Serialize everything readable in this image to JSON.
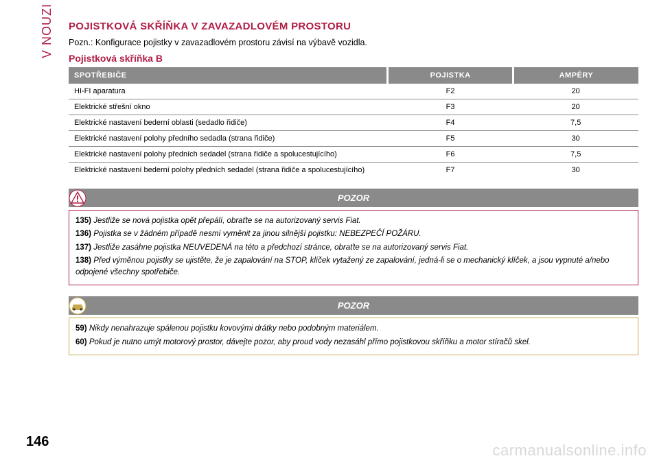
{
  "colors": {
    "accent": "#b01e45",
    "header_bg": "#8a8a8a",
    "header_gap": "#ffffff",
    "row_border": "#888888",
    "warn1_bg": "#8a8a8a",
    "warn1_border": "#b01e45",
    "warn2_bg": "#8a8a8a",
    "warn2_border": "#caa84a",
    "side_label": "#b01e45",
    "watermark": "#d8d8d8"
  },
  "side_label": "V NOUZI",
  "page_number": "146",
  "watermark": "carmanualsonline.info",
  "heading_main": "POJISTKOVÁ SKŘÍŇKA V ZAVAZADLOVÉM PROSTORU",
  "note": "Pozn.: Konfigurace pojistky v zavazadlovém prostoru závisí na výbavě vozidla.",
  "heading_sub": "Pojistková skříňka B",
  "table": {
    "columns": [
      "SPOTŘEBIČE",
      "POJISTKA",
      "AMPÉRY"
    ],
    "rows": [
      [
        "HI-FI aparatura",
        "F2",
        "20"
      ],
      [
        "Elektrické střešní okno",
        "F3",
        "20"
      ],
      [
        "Elektrické nastavení bederní oblasti (sedadlo řidiče)",
        "F4",
        "7,5"
      ],
      [
        "Elektrické nastavení polohy předního sedadla (strana řidiče)",
        "F5",
        "30"
      ],
      [
        "Elektrické nastavení polohy předních sedadel (strana řidiče a spolucestujícího)",
        "F6",
        "7,5"
      ],
      [
        "Elektrické nastavení bederní polohy předních sedadel (strana řidiče a spolucestujícího)",
        "F7",
        "30"
      ]
    ]
  },
  "callout1": {
    "title": "POZOR",
    "icon": "warning-triangle",
    "items": [
      {
        "num": "135)",
        "text": "Jestliže se nová pojistka opět přepálí, obraťte se na autorizovaný servis Fiat."
      },
      {
        "num": "136)",
        "text": "Pojistka se v žádném případě nesmí vyměnit za jinou silnější pojistku: NEBEZPEČÍ POŽÁRU."
      },
      {
        "num": "137)",
        "text": "Jestliže zasáhne pojistka NEUVEDENÁ na této a předchozí stránce, obraťte se na autorizovaný servis Fiat."
      },
      {
        "num": "138)",
        "text": "Před výměnou pojistky se ujistěte, že je zapalování na STOP, klíček vytažený ze zapalování, jedná-li se o mechanický klíček, a jsou vypnuté a/nebo odpojené všechny spotřebiče."
      }
    ]
  },
  "callout2": {
    "title": "POZOR",
    "icon": "car-warning",
    "items": [
      {
        "num": "59)",
        "text": "Nikdy nenahrazuje spálenou pojistku kovovými drátky nebo podobným materiálem."
      },
      {
        "num": "60)",
        "text": "Pokud je nutno umýt motorový prostor, dávejte pozor, aby proud vody nezasáhl přímo pojistkovou skříňku a motor stíračů skel."
      }
    ]
  }
}
